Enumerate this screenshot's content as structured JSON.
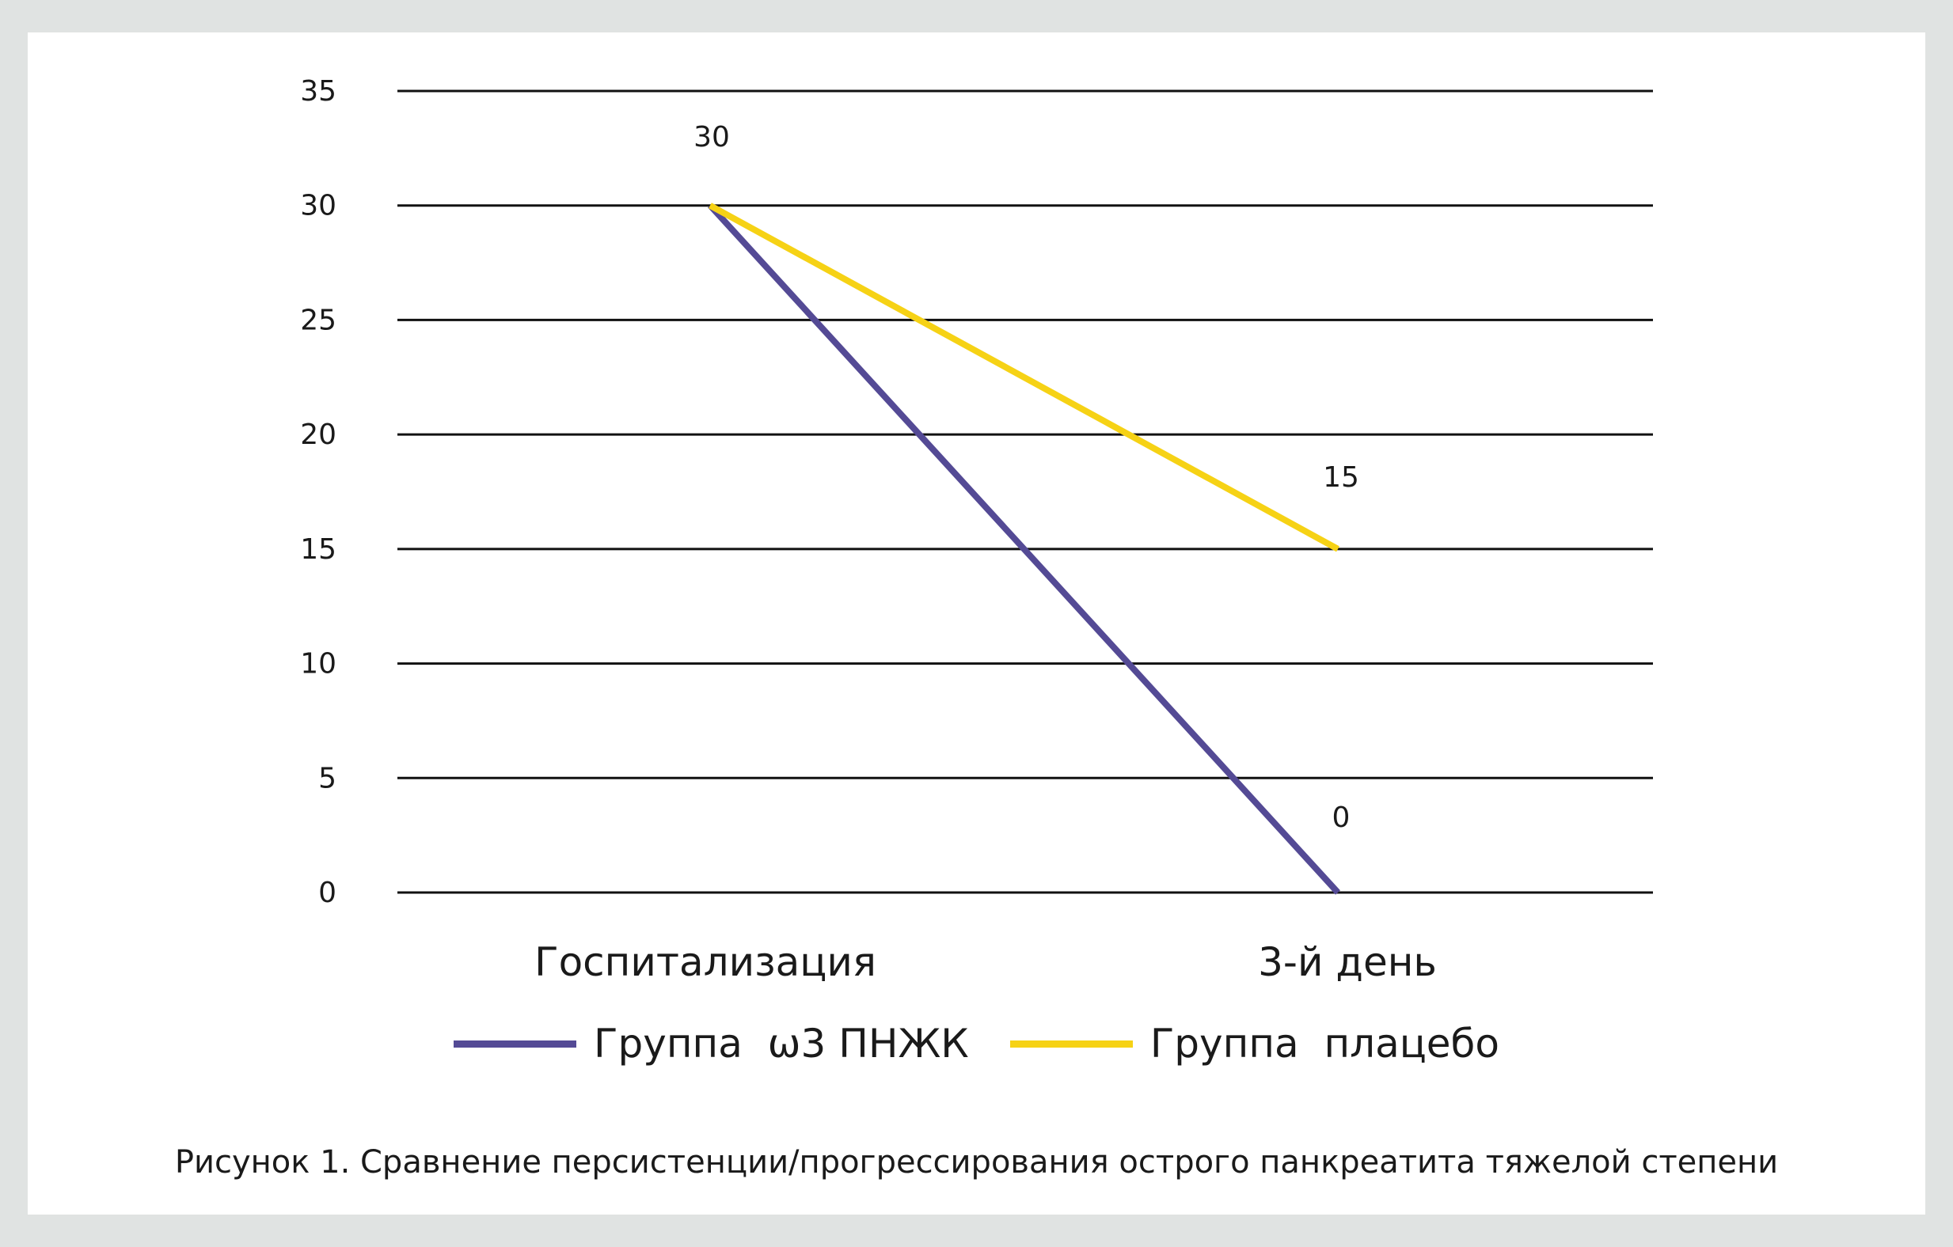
{
  "caption": "Рисунок 1. Сравнение персистенции/прогрессирования острого панкреатита тяжелой степени",
  "chart_data": {
    "type": "line",
    "categories": [
      "Госпитализация",
      "3-й день"
    ],
    "series": [
      {
        "name": "Группа  ω3 ПНЖК",
        "values": [
          30,
          0
        ],
        "color": "#544a95"
      },
      {
        "name": "Группа  плацебо",
        "values": [
          30,
          15
        ],
        "color": "#f6d215"
      }
    ],
    "data_labels": [
      {
        "category": "Госпитализация",
        "text": "30"
      },
      {
        "category": "3-й день",
        "text": "15"
      },
      {
        "category": "3-й день",
        "text": "0"
      }
    ],
    "yticks": [
      "0",
      "5",
      "10",
      "15",
      "20",
      "25",
      "30",
      "35"
    ],
    "ylim": [
      0,
      35
    ],
    "grid": true,
    "legend_position": "bottom",
    "title": "",
    "xlabel": "",
    "ylabel": ""
  }
}
